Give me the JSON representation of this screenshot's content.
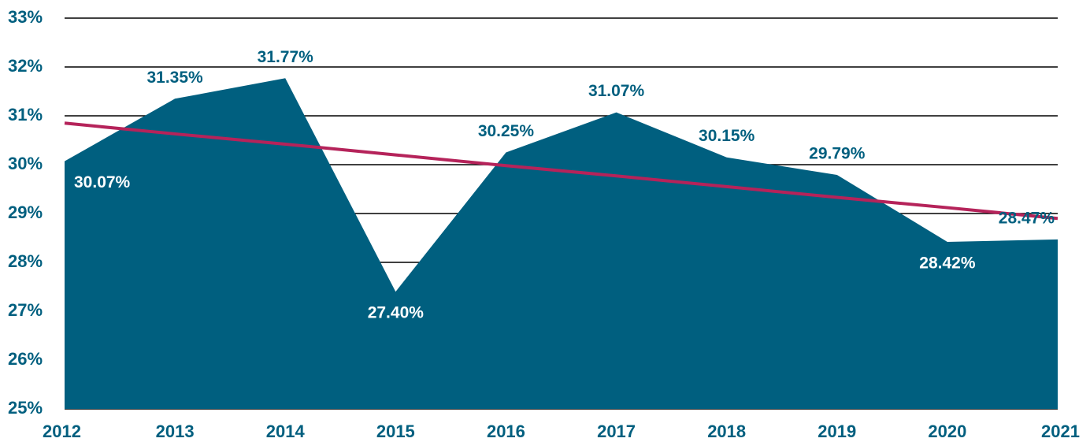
{
  "chart_data": {
    "type": "area",
    "categories": [
      "2012",
      "2013",
      "2014",
      "2015",
      "2016",
      "2017",
      "2018",
      "2019",
      "2020",
      "2021"
    ],
    "values": [
      30.07,
      31.35,
      31.77,
      27.4,
      30.25,
      31.07,
      30.15,
      29.79,
      28.42,
      28.47
    ],
    "value_labels": [
      "30.07%",
      "31.35%",
      "31.77%",
      "27.40%",
      "30.25%",
      "31.07%",
      "30.15%",
      "29.79%",
      "28.42%",
      "28.47%"
    ],
    "color": "#005f7f",
    "trendline": {
      "color": "#b5235a",
      "values": [
        30.85,
        30.63,
        30.42,
        30.2,
        29.98,
        29.77,
        29.55,
        29.33,
        29.12,
        28.9
      ]
    },
    "ylim": [
      25,
      33
    ],
    "yticks": [
      {
        "value": 25,
        "label": "25%"
      },
      {
        "value": 26,
        "label": "26%"
      },
      {
        "value": 27,
        "label": "27%"
      },
      {
        "value": 28,
        "label": "28%"
      },
      {
        "value": 29,
        "label": "29%"
      },
      {
        "value": 30,
        "label": "30%"
      },
      {
        "value": 31,
        "label": "31%"
      },
      {
        "value": 32,
        "label": "32%"
      },
      {
        "value": 33,
        "label": "33%"
      }
    ],
    "grid": true
  }
}
